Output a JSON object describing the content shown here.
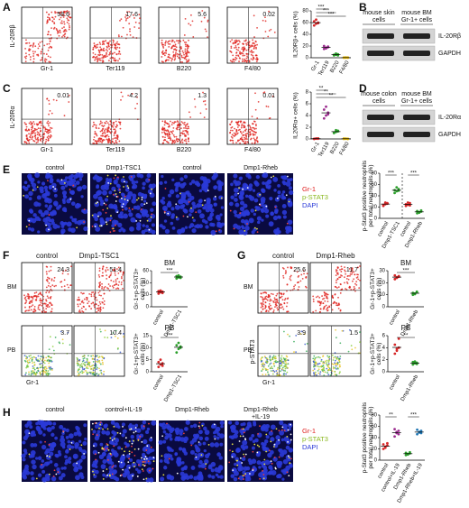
{
  "figure": {
    "A": {
      "label": "A",
      "y_label": "IL-20Rβ",
      "plots": [
        {
          "x_label": "Gr-1",
          "value": 58.6
        },
        {
          "x_label": "Ter119",
          "value": 17.6
        },
        {
          "x_label": "B220",
          "value": 5.6
        },
        {
          "x_label": "F4/80",
          "value": 0.02
        }
      ],
      "dotplot": {
        "y_label": "IL20Rβ+ cells (%)",
        "categories": [
          "Gr-1",
          "Ter119",
          "B220",
          "F4/80"
        ],
        "colors": [
          "#d62728",
          "#9b2d8f",
          "#2ca02c",
          "#e0b400"
        ],
        "groups": [
          [
            55,
            58,
            60,
            62,
            65,
            59
          ],
          [
            15,
            17,
            18,
            20,
            16,
            19
          ],
          [
            4,
            5,
            6,
            5,
            7,
            4
          ],
          [
            0,
            0.5,
            0.2,
            0.3,
            0.1,
            0.4
          ]
        ],
        "ylim": [
          0,
          80
        ],
        "yticks": [
          0,
          20,
          40,
          60,
          80
        ],
        "significance": [
          "***",
          "***",
          "***"
        ]
      }
    },
    "B": {
      "label": "B",
      "columns": [
        [
          "mouse skin",
          "cells"
        ],
        [
          "mouse BM",
          "Gr-1+ cells"
        ]
      ],
      "bands": [
        "IL-20Rβ",
        "GAPDH"
      ]
    },
    "C": {
      "label": "C",
      "y_label": "IL-20Rα",
      "plots": [
        {
          "x_label": "Gr-1",
          "value": 0.01
        },
        {
          "x_label": "Ter119",
          "value": 4.2
        },
        {
          "x_label": "B220",
          "value": 1.3
        },
        {
          "x_label": "F4/80",
          "value": 0.01
        }
      ],
      "dotplot": {
        "y_label": "IL20Rα+ cells (%)",
        "categories": [
          "Gr-1",
          "Ter119",
          "B220",
          "F4/80"
        ],
        "colors": [
          "#d62728",
          "#9b2d8f",
          "#2ca02c",
          "#e0b400"
        ],
        "groups": [
          [
            0,
            0.05,
            0.1,
            0.02,
            0.08,
            0.03
          ],
          [
            3.5,
            4,
            4.5,
            5,
            5.5,
            4.2
          ],
          [
            1,
            1.2,
            1.4,
            1.1,
            1.5,
            1.3
          ],
          [
            0,
            0.05,
            0.02,
            0.08,
            0.04,
            0.01
          ]
        ],
        "ylim": [
          0,
          8
        ],
        "yticks": [
          0,
          2,
          4,
          6,
          8
        ],
        "significance": [
          "**",
          "**",
          "**"
        ]
      }
    },
    "D": {
      "label": "D",
      "columns": [
        [
          "mouse colon",
          "cells"
        ],
        [
          "mouse BM",
          "Gr-1+ cells"
        ]
      ],
      "bands": [
        "IL-20Rα",
        "GAPDH"
      ]
    },
    "E": {
      "label": "E",
      "images": [
        [
          "control"
        ],
        [
          "Dmp1-TSC1"
        ],
        [
          "control"
        ],
        [
          "Dmp1-Rheb"
        ]
      ],
      "legend": [
        "Gr-1",
        "p-STAT3",
        "DAPI"
      ],
      "dotplot": {
        "y_label": [
          "p-Stat3 positive neutrophils",
          "per total neutrophils (%)"
        ],
        "categories": [
          "control",
          "Dmp1-TSC1",
          "control",
          "Dmp1-Rheb"
        ],
        "colors": [
          "#d62728",
          "#2ca02c",
          "#d62728",
          "#2ca02c"
        ],
        "groups": [
          [
            22,
            25,
            27,
            24,
            28,
            26
          ],
          [
            45,
            48,
            52,
            50,
            55,
            49
          ],
          [
            22,
            24,
            27,
            25,
            28,
            23
          ],
          [
            9,
            11,
            12,
            13,
            10,
            14
          ]
        ],
        "ylim": [
          0,
          80
        ],
        "yticks": [
          0,
          20,
          40,
          60,
          80
        ],
        "significance": [
          "***",
          "***"
        ],
        "divider": true
      }
    },
    "F": {
      "label": "F",
      "columns": [
        "control",
        "Dmp1-TSC1"
      ],
      "rows": [
        "BM",
        "PB"
      ],
      "values": [
        [
          24.3,
          51.4
        ],
        [
          3.7,
          10.4
        ]
      ],
      "x_label": "Gr-1",
      "dotplots": [
        {
          "title": "BM",
          "y_label": [
            "Gr-1+p-STAT3+",
            "cells (%)"
          ],
          "categories": [
            "control",
            "Dmp1-TSC1"
          ],
          "colors": [
            "#d62728",
            "#2ca02c"
          ],
          "groups": [
            [
              22,
              24,
              25,
              26,
              27,
              23
            ],
            [
              47,
              49,
              50,
              51,
              52,
              48
            ]
          ],
          "ylim": [
            0,
            60
          ],
          "yticks": [
            0,
            20,
            40,
            60
          ],
          "significance": [
            "***"
          ]
        },
        {
          "title": "PB",
          "y_label": [
            "Gr-1+p-STAT3+",
            "cells (%)"
          ],
          "categories": [
            "control",
            "Dmp1-TSC1"
          ],
          "colors": [
            "#d62728",
            "#2ca02c"
          ],
          "groups": [
            [
              2,
              3,
              3.5,
              4,
              5,
              2.5
            ],
            [
              8,
              9.5,
              10,
              11,
              12,
              10.5
            ]
          ],
          "ylim": [
            0,
            15
          ],
          "yticks": [
            0,
            5,
            10,
            15
          ],
          "significance": [
            "***"
          ]
        }
      ]
    },
    "G": {
      "label": "G",
      "columns": [
        "control",
        "Dmp1-Rheb"
      ],
      "rows": [
        "BM",
        "PB"
      ],
      "values": [
        [
          25.6,
          11.7
        ],
        [
          3.9,
          1.5
        ]
      ],
      "x_label": "Gr-1",
      "y_label": "p-STAT3",
      "dotplots": [
        {
          "title": "BM",
          "y_label": [
            "Gr-1+p-STAT3+",
            "cells (%)"
          ],
          "categories": [
            "control",
            "Dmp1-Rheb"
          ],
          "colors": [
            "#d62728",
            "#2ca02c"
          ],
          "groups": [
            [
              23,
              24,
              25,
              26,
              24.5,
              25.5
            ],
            [
              10,
              11,
              12,
              11.5,
              10.5,
              12.5
            ]
          ],
          "ylim": [
            0,
            30
          ],
          "yticks": [
            0,
            10,
            20,
            30
          ],
          "significance": [
            "***"
          ]
        },
        {
          "title": "PB",
          "y_label": [
            "Gr-1+p-STAT3+",
            "cells (%)"
          ],
          "categories": [
            "control",
            "Dmp1-Rheb"
          ],
          "colors": [
            "#d62728",
            "#2ca02c"
          ],
          "groups": [
            [
              3,
              3.5,
              4,
              4.5,
              3.8,
              5.5
            ],
            [
              1.2,
              1.4,
              1.5,
              1.6,
              1.7,
              1.3
            ]
          ],
          "ylim": [
            0,
            6
          ],
          "yticks": [
            0,
            2,
            4,
            6
          ],
          "significance": [
            "**"
          ]
        }
      ]
    },
    "H": {
      "label": "H",
      "images": [
        [
          "control"
        ],
        [
          "control+IL-19"
        ],
        [
          "Dmp1-Rheb"
        ],
        [
          "Dmp1-Rheb",
          "+IL-19"
        ]
      ],
      "legend": [
        "Gr-1",
        "p-STAT3",
        "DAPI"
      ],
      "dotplot": {
        "y_label": [
          "p-Stat3 positive neutrophils",
          "per total neutrophils (%)"
        ],
        "categories": [
          "control",
          "control+IL-19",
          "Dmp1-Rheb",
          "Dmp1-Rheb+IL-19"
        ],
        "colors": [
          "#d62728",
          "#9b2d8f",
          "#2ca02c",
          "#1f77b4"
        ],
        "groups": [
          [
            20,
            24,
            26,
            28,
            22,
            30
          ],
          [
            42,
            48,
            52,
            55,
            50,
            46
          ],
          [
            9,
            11,
            12,
            13,
            10,
            14
          ],
          [
            46,
            49,
            52,
            54,
            50,
            48
          ]
        ],
        "ylim": [
          0,
          80
        ],
        "yticks": [
          0,
          20,
          40,
          60,
          80
        ],
        "significance": [
          "**",
          "***"
        ]
      }
    }
  }
}
